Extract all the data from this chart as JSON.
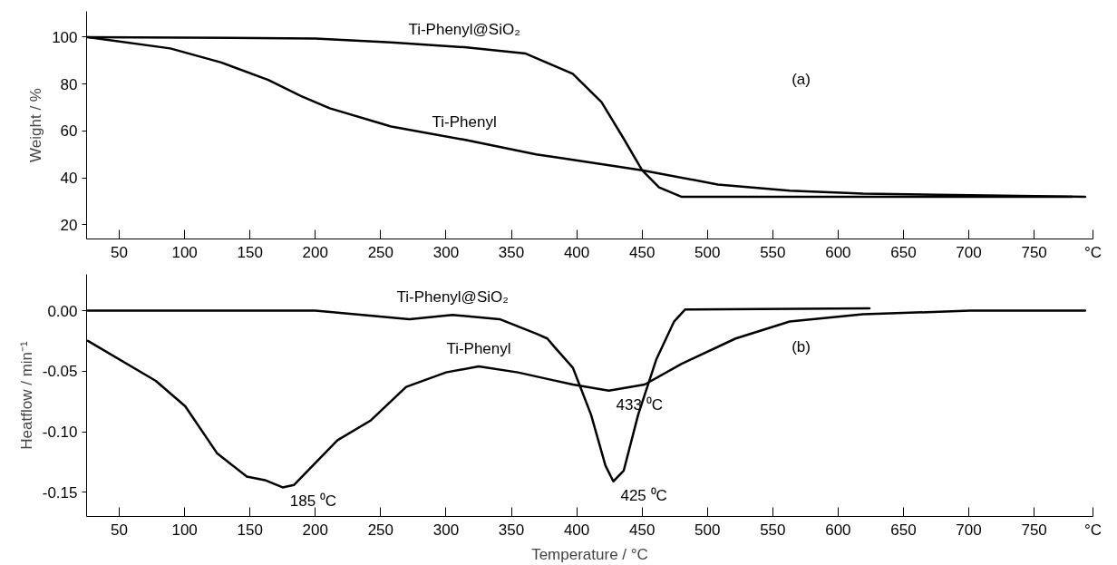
{
  "chart_data": [
    {
      "type": "line",
      "ylabel": "Weight / %",
      "xlim": [
        25,
        795
      ],
      "ylim": [
        14,
        111
      ],
      "xticks": [
        50,
        100,
        150,
        200,
        250,
        300,
        350,
        400,
        450,
        500,
        550,
        600,
        650,
        700,
        750,
        {
          "value": 795,
          "label": "°C"
        }
      ],
      "yticks": [
        20,
        40,
        60,
        80,
        100
      ],
      "grid": false,
      "marker": "none",
      "line_style": "solid",
      "series": [
        {
          "name": "Ti-Phenyl",
          "color": "#000000",
          "x": [
            26,
            89,
            128,
            164,
            189,
            211,
            258,
            314,
            369,
            388,
            450,
            508,
            563,
            619,
            789
          ],
          "values": [
            100,
            95.2,
            89.2,
            81.8,
            74.9,
            69.7,
            61.9,
            56.3,
            50,
            48.5,
            43.3,
            37.2,
            34.6,
            33.3,
            32
          ]
        },
        {
          "name": "Ti-Phenyl@SiO₂",
          "color": "#000000",
          "x": [
            26,
            100,
            200,
            258,
            314,
            361,
            397,
            419,
            436,
            450,
            463,
            480,
            779
          ],
          "values": [
            100,
            99.8,
            99.4,
            97.8,
            95.7,
            93,
            84.4,
            72.3,
            56.7,
            43.3,
            36,
            32,
            32
          ]
        }
      ],
      "annotations": [
        "(a)"
      ]
    },
    {
      "type": "line",
      "xlabel": "Temperature / °C",
      "ylabel": "Heatflow / min⁻¹",
      "xlim": [
        25,
        795
      ],
      "ylim": [
        -0.17,
        0.03
      ],
      "xticks": [
        50,
        100,
        150,
        200,
        250,
        300,
        350,
        400,
        450,
        500,
        550,
        600,
        650,
        700,
        750,
        {
          "value": 795,
          "label": "°C"
        }
      ],
      "yticks": [
        {
          "value": 0,
          "label": "0.00"
        },
        {
          "value": -0.05,
          "label": "-0.05"
        },
        {
          "value": -0.1,
          "label": "-0.10"
        },
        {
          "value": -0.15,
          "label": "-0.15"
        }
      ],
      "grid": false,
      "marker": "none",
      "line_style": "solid",
      "series": [
        {
          "name": "Ti-Phenyl",
          "color": "#000000",
          "x": [
            26,
            78,
            100.5,
            125,
            147.6,
            161.5,
            175,
            183.6,
            217,
            242,
            269.5,
            300,
            325,
            355,
            380,
            397,
            424.6,
            452,
            480,
            521.6,
            563,
            619,
            701,
            789
          ],
          "values": [
            -0.025,
            -0.058,
            -0.079,
            -0.118,
            -0.137,
            -0.14,
            -0.146,
            -0.144,
            -0.107,
            -0.091,
            -0.063,
            -0.051,
            -0.046,
            -0.051,
            -0.057,
            -0.061,
            -0.066,
            -0.061,
            -0.044,
            -0.023,
            -0.009,
            -0.003,
            0,
            0
          ]
        },
        {
          "name": "Ti-Phenyl@SiO₂",
          "color": "#000000",
          "x": [
            26,
            100,
            200,
            272,
            305,
            341,
            369,
            377.5,
            383,
            397,
            411,
            422,
            428,
            436,
            447,
            461,
            474.5,
            483,
            624
          ],
          "values": [
            0,
            0,
            0,
            -0.007,
            -0.0035,
            -0.007,
            -0.019,
            -0.023,
            -0.03,
            -0.047,
            -0.086,
            -0.128,
            -0.141,
            -0.132,
            -0.086,
            -0.04,
            -0.009,
            0.001,
            0.002
          ]
        }
      ],
      "annotations": [
        {
          "text": "185 ⁰C",
          "x": 175,
          "y": -0.146
        },
        {
          "text": "433 ⁰C",
          "x": 424.6,
          "y": -0.066
        },
        {
          "text": "425 ⁰C",
          "x": 428,
          "y": -0.141
        },
        "(b)"
      ]
    }
  ]
}
